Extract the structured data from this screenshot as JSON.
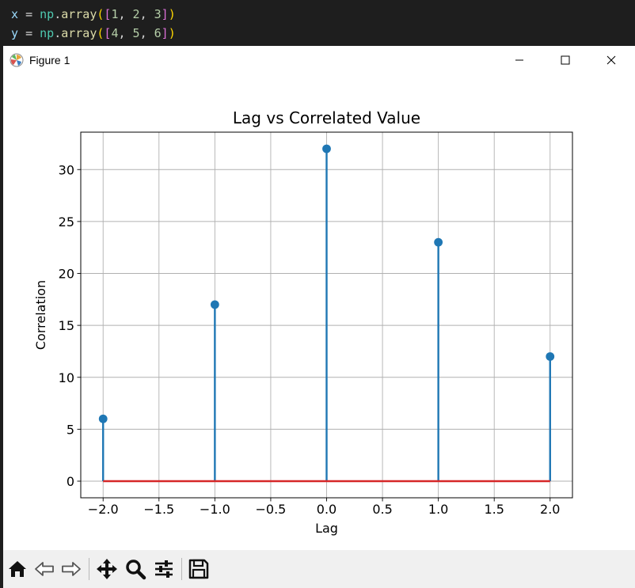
{
  "editor": {
    "lines": [
      {
        "var": "x",
        "op": "=",
        "mod": "np",
        "fn": "array",
        "nums": [
          "1",
          "2",
          "3"
        ]
      },
      {
        "var": "y",
        "op": "=",
        "mod": "np",
        "fn": "array",
        "nums": [
          "4",
          "5",
          "6"
        ]
      }
    ]
  },
  "window": {
    "title": "Figure 1",
    "icon": "matplotlib-icon",
    "controls": [
      "minimize-icon",
      "maximize-icon",
      "close-icon"
    ]
  },
  "toolbar": {
    "buttons": [
      "home-icon",
      "back-arrow-icon",
      "forward-arrow-icon",
      "pan-icon",
      "zoom-icon",
      "configure-subplots-icon",
      "save-icon"
    ]
  },
  "colors": {
    "stem": "#1f77b4",
    "baseline": "#d62728",
    "grid": "#b0b0b0"
  },
  "chart_data": {
    "type": "stem",
    "title": "Lag vs Correlated Value",
    "xlabel": "Lag",
    "ylabel": "Correlation",
    "x": [
      -2,
      -1,
      0,
      1,
      2
    ],
    "values": [
      6,
      17,
      32,
      23,
      12
    ],
    "xlim": [
      -2.2,
      2.2
    ],
    "ylim": [
      -1.6,
      33.6
    ],
    "xticks": [
      "−2.0",
      "−1.5",
      "−1.0",
      "−0.5",
      "0.0",
      "0.5",
      "1.0",
      "1.5",
      "2.0"
    ],
    "yticks": [
      "0",
      "5",
      "10",
      "15",
      "20",
      "25",
      "30"
    ],
    "grid": true,
    "baseline": 0
  }
}
